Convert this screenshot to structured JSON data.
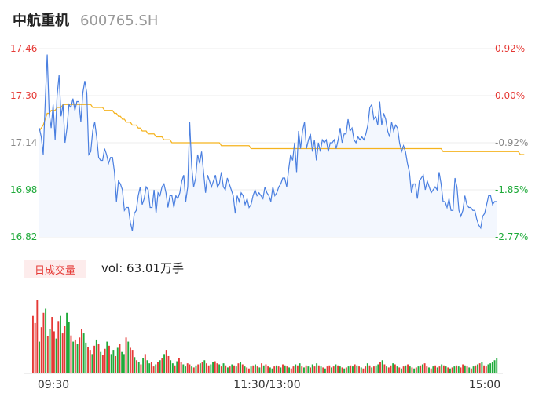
{
  "header": {
    "name": "中航重机",
    "code": "600765.SH"
  },
  "volume_panel": {
    "period_tab": "日成交量",
    "vol_label": "vol: 63.01万手"
  },
  "colors": {
    "price_line": "#4a7fe0",
    "avg_line": "#f5b31e",
    "up": "#e53935",
    "down": "#1faa3a",
    "grid": "#eeeeee"
  },
  "chart_data": [
    {
      "type": "line",
      "title": "",
      "y_ticks_left": [
        "17.46",
        "17.30",
        "17.14",
        "16.98",
        "16.82"
      ],
      "y_ticks_right": [
        "0.92%",
        "0.00%",
        "-0.92%",
        "-1.85%",
        "-2.77%"
      ],
      "y_tick_values": [
        17.46,
        17.3,
        17.14,
        16.98,
        16.82
      ],
      "ylim": [
        16.82,
        17.46
      ],
      "x_ticks": [
        "09:30",
        "11:30/13:00",
        "15:00"
      ],
      "series": [
        {
          "name": "price",
          "values": [
            17.19,
            17.16,
            17.1,
            17.28,
            17.44,
            17.24,
            17.19,
            17.27,
            17.15,
            17.3,
            17.37,
            17.23,
            17.27,
            17.14,
            17.19,
            17.27,
            17.26,
            17.29,
            17.25,
            17.28,
            17.28,
            17.21,
            17.31,
            17.35,
            17.31,
            17.1,
            17.11,
            17.18,
            17.21,
            17.16,
            17.09,
            17.08,
            17.08,
            17.12,
            17.1,
            17.07,
            17.09,
            17.09,
            17.04,
            16.94,
            17.01,
            17.0,
            16.98,
            16.91,
            16.92,
            16.92,
            16.87,
            16.84,
            16.9,
            16.91,
            16.96,
            16.99,
            16.93,
            16.95,
            16.99,
            16.98,
            16.92,
            16.92,
            16.98,
            16.9,
            16.97,
            16.96,
            16.99,
            17.0,
            16.97,
            16.92,
            16.96,
            16.96,
            16.92,
            16.96,
            16.95,
            16.97,
            17.01,
            17.03,
            16.94,
            16.99,
            17.21,
            17.06,
            16.99,
            17.02,
            17.1,
            17.07,
            17.11,
            17.04,
            16.97,
            17.03,
            17.01,
            16.99,
            17.01,
            17.03,
            16.99,
            17.0,
            17.04,
            16.99,
            16.98,
            17.02,
            17.0,
            16.98,
            16.96,
            16.9,
            16.96,
            16.94,
            16.97,
            16.96,
            16.93,
            16.95,
            16.92,
            16.93,
            16.96,
            16.98,
            16.96,
            16.97,
            16.96,
            16.95,
            16.99,
            16.97,
            16.96,
            16.94,
            16.99,
            16.96,
            16.97,
            16.99,
            17.0,
            17.02,
            17.02,
            16.99,
            17.05,
            17.1,
            17.08,
            17.14,
            17.04,
            17.18,
            17.12,
            17.18,
            17.21,
            17.12,
            17.15,
            17.17,
            17.11,
            17.15,
            17.08,
            17.14,
            17.11,
            17.15,
            17.14,
            17.15,
            17.11,
            17.14,
            17.14,
            17.15,
            17.12,
            17.15,
            17.19,
            17.14,
            17.17,
            17.17,
            17.22,
            17.18,
            17.19,
            17.15,
            17.14,
            17.16,
            17.15,
            17.16,
            17.15,
            17.17,
            17.2,
            17.26,
            17.27,
            17.22,
            17.23,
            17.2,
            17.28,
            17.2,
            17.24,
            17.22,
            17.18,
            17.16,
            17.21,
            17.18,
            17.2,
            17.19,
            17.14,
            17.11,
            17.13,
            17.11,
            17.07,
            17.04,
            16.97,
            17.0,
            17.0,
            16.95,
            17.01,
            17.02,
            17.03,
            16.98,
            17.01,
            16.99,
            16.97,
            16.98,
            16.99,
            16.98,
            17.04,
            17.0,
            16.94,
            16.94,
            16.92,
            16.95,
            16.91,
            16.91,
            17.02,
            16.99,
            16.91,
            16.89,
            16.91,
            16.96,
            16.93,
            16.92,
            16.92,
            16.91,
            16.91,
            16.88,
            16.86,
            16.85,
            16.89,
            16.9,
            16.93,
            16.96,
            16.96,
            16.93,
            16.94,
            16.94
          ]
        },
        {
          "name": "average",
          "values": [
            17.18,
            17.19,
            17.2,
            17.22,
            17.24,
            17.24,
            17.25,
            17.25,
            17.25,
            17.26,
            17.26,
            17.26,
            17.27,
            17.27,
            17.27,
            17.27,
            17.27,
            17.27,
            17.27,
            17.27,
            17.27,
            17.27,
            17.27,
            17.27,
            17.27,
            17.27,
            17.27,
            17.26,
            17.26,
            17.26,
            17.26,
            17.26,
            17.26,
            17.25,
            17.25,
            17.25,
            17.25,
            17.25,
            17.24,
            17.24,
            17.23,
            17.23,
            17.22,
            17.22,
            17.21,
            17.21,
            17.21,
            17.2,
            17.2,
            17.2,
            17.19,
            17.19,
            17.18,
            17.18,
            17.18,
            17.17,
            17.17,
            17.17,
            17.17,
            17.16,
            17.16,
            17.16,
            17.16,
            17.15,
            17.15,
            17.15,
            17.15,
            17.14,
            17.14,
            17.14,
            17.14,
            17.14,
            17.14,
            17.14,
            17.14,
            17.14,
            17.14,
            17.14,
            17.14,
            17.14,
            17.14,
            17.14,
            17.14,
            17.14,
            17.14,
            17.14,
            17.14,
            17.14,
            17.14,
            17.14,
            17.14,
            17.14,
            17.13,
            17.13,
            17.13,
            17.13,
            17.13,
            17.13,
            17.13,
            17.13,
            17.13,
            17.13,
            17.13,
            17.13,
            17.13,
            17.13,
            17.13,
            17.12,
            17.12,
            17.12,
            17.12,
            17.12,
            17.12,
            17.12,
            17.12,
            17.12,
            17.12,
            17.12,
            17.12,
            17.12,
            17.12,
            17.12,
            17.12,
            17.12,
            17.12,
            17.12,
            17.12,
            17.12,
            17.12,
            17.12,
            17.12,
            17.12,
            17.12,
            17.12,
            17.12,
            17.12,
            17.12,
            17.12,
            17.12,
            17.12,
            17.12,
            17.12,
            17.12,
            17.12,
            17.12,
            17.12,
            17.12,
            17.12,
            17.12,
            17.12,
            17.12,
            17.12,
            17.12,
            17.12,
            17.12,
            17.12,
            17.12,
            17.12,
            17.12,
            17.12,
            17.12,
            17.12,
            17.12,
            17.12,
            17.12,
            17.12,
            17.12,
            17.12,
            17.12,
            17.12,
            17.12,
            17.12,
            17.12,
            17.12,
            17.12,
            17.12,
            17.12,
            17.12,
            17.12,
            17.12,
            17.12,
            17.12,
            17.12,
            17.12,
            17.12,
            17.12,
            17.12,
            17.12,
            17.12,
            17.12,
            17.12,
            17.12,
            17.12,
            17.12,
            17.12,
            17.12,
            17.12,
            17.12,
            17.12,
            17.12,
            17.12,
            17.12,
            17.12,
            17.12,
            17.11,
            17.11,
            17.11,
            17.11,
            17.11,
            17.11,
            17.11,
            17.11,
            17.11,
            17.11,
            17.11,
            17.11,
            17.11,
            17.11,
            17.11,
            17.11,
            17.11,
            17.11,
            17.11,
            17.11,
            17.11,
            17.11,
            17.11,
            17.11,
            17.11,
            17.11,
            17.11,
            17.11,
            17.11,
            17.11,
            17.11,
            17.11,
            17.11,
            17.11,
            17.11,
            17.11,
            17.11,
            17.11,
            17.11,
            17.1,
            17.1,
            17.1
          ]
        }
      ]
    },
    {
      "type": "bar",
      "title": "",
      "series": [
        {
          "name": "volume",
          "values": [
            55,
            48,
            70,
            30,
            44,
            58,
            62,
            35,
            42,
            54,
            40,
            33,
            50,
            55,
            38,
            45,
            58,
            49,
            36,
            30,
            32,
            28,
            34,
            42,
            38,
            29,
            25,
            22,
            18,
            26,
            32,
            28,
            20,
            17,
            23,
            30,
            26,
            18,
            22,
            16,
            24,
            28,
            20,
            18,
            34,
            30,
            24,
            22,
            15,
            12,
            10,
            8,
            14,
            18,
            12,
            9,
            10,
            6,
            8,
            10,
            12,
            14,
            18,
            22,
            16,
            12,
            9,
            7,
            11,
            14,
            10,
            8,
            6,
            9,
            8,
            6,
            5,
            7,
            8,
            9,
            10,
            12,
            9,
            7,
            8,
            10,
            11,
            9,
            8,
            6,
            9,
            7,
            5,
            6,
            8,
            7,
            6,
            9,
            10,
            8,
            6,
            5,
            4,
            6,
            7,
            8,
            6,
            5,
            9,
            7,
            8,
            6,
            5,
            4,
            6,
            7,
            6,
            5,
            8,
            7,
            6,
            5,
            4,
            6,
            8,
            7,
            9,
            6,
            5,
            7,
            6,
            5,
            8,
            6,
            9,
            7,
            6,
            5,
            4,
            6,
            7,
            5,
            6,
            8,
            7,
            6,
            5,
            4,
            5,
            6,
            7,
            6,
            8,
            7,
            6,
            5,
            4,
            6,
            9,
            7,
            5,
            6,
            7,
            8,
            10,
            12,
            8,
            6,
            5,
            7,
            9,
            8,
            6,
            5,
            4,
            6,
            7,
            8,
            6,
            5,
            4,
            5,
            6,
            7,
            8,
            9,
            6,
            5,
            4,
            6,
            7,
            5,
            6,
            8,
            7,
            6,
            5,
            4,
            5,
            6,
            7,
            6,
            5,
            8,
            7,
            6,
            5,
            4,
            6,
            7,
            8,
            9,
            10,
            7,
            6,
            8,
            9,
            10,
            12,
            14
          ],
          "up": [
            1,
            1,
            1,
            0,
            1,
            1,
            0,
            1,
            0,
            1,
            1,
            0,
            1,
            0,
            1,
            1,
            0,
            0,
            1,
            0,
            1,
            0,
            1,
            1,
            0,
            0,
            1,
            1,
            0,
            1,
            0,
            1,
            0,
            1,
            1,
            0,
            1,
            0,
            0,
            1,
            0,
            1,
            0,
            0,
            1,
            0,
            1,
            1,
            0,
            1,
            0,
            1,
            0,
            1,
            0,
            0,
            1,
            1,
            0,
            1,
            0,
            1,
            0,
            1,
            1,
            0,
            0,
            1,
            0,
            1,
            1,
            0,
            0,
            1,
            1,
            0,
            1,
            0,
            1,
            0,
            1,
            0,
            1,
            1,
            0,
            0,
            1,
            1,
            0,
            1,
            0,
            1,
            0,
            1,
            0,
            1,
            0,
            1,
            0,
            1,
            0,
            1,
            1,
            0,
            1,
            0,
            1,
            0,
            1,
            0,
            1,
            1,
            0,
            0,
            1,
            0,
            1,
            0,
            1,
            0,
            1,
            0,
            1,
            1,
            0,
            1,
            0,
            1,
            0,
            1,
            0,
            1,
            0,
            1,
            0,
            1,
            0,
            1,
            0,
            1,
            1,
            0,
            1,
            0,
            1,
            0,
            1,
            0,
            1,
            0,
            1,
            0,
            1,
            0,
            1,
            0,
            1,
            1,
            0,
            1,
            0,
            1,
            0,
            0,
            1,
            0,
            1,
            0,
            1,
            1,
            0,
            1,
            0,
            1,
            0,
            1,
            0,
            1,
            0,
            1,
            0,
            1,
            0,
            1,
            0,
            1,
            1,
            0,
            1,
            0,
            1,
            0,
            1,
            0,
            1,
            0,
            1,
            0,
            1,
            0,
            1,
            0,
            1,
            1,
            0,
            1,
            0,
            1,
            0,
            1,
            0,
            1,
            0,
            1,
            1
          ]
        }
      ]
    }
  ]
}
